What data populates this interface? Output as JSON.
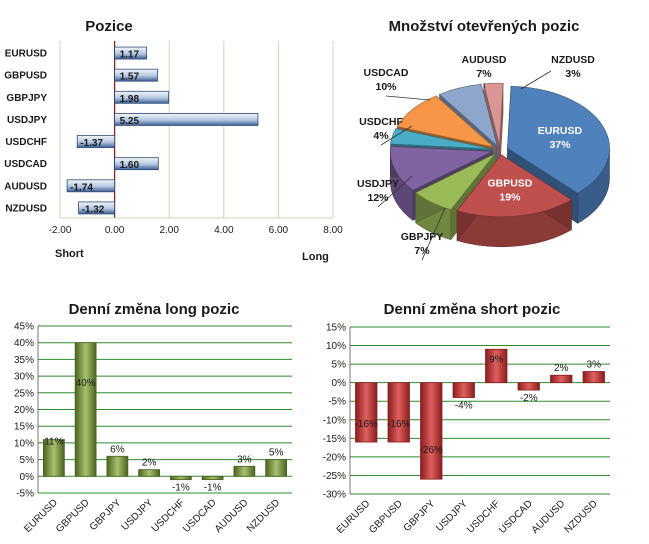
{
  "chart_data": [
    {
      "id": "positions",
      "type": "bar",
      "orientation": "horizontal",
      "title": "Pozice",
      "categories": [
        "EURUSD",
        "GBPUSD",
        "GBPJPY",
        "USDJPY",
        "USDCHF",
        "USDCAD",
        "AUDUSD",
        "NZDUSD"
      ],
      "values": [
        1.17,
        1.57,
        1.98,
        5.25,
        -1.37,
        1.6,
        -1.74,
        -1.32
      ],
      "value_labels": [
        "1.17",
        "1.57",
        "1.98",
        "5.25",
        "-1.37",
        "1.60",
        "-1.74",
        "-1.32"
      ],
      "xlim": [
        -2,
        8
      ],
      "ticks": [
        -2,
        0,
        2,
        4,
        6,
        8
      ],
      "tick_labels": [
        "-2.00",
        "0.00",
        "2.00",
        "4.00",
        "6.00",
        "8.00"
      ],
      "left_label": "Short",
      "right_label": "Long",
      "grid": true,
      "colors": {
        "bar_light": "#f0f4fa",
        "bar_dark": "#3c5f94",
        "grid": "#c8d8b8",
        "zero": "#8b2020"
      }
    },
    {
      "id": "open-positions",
      "type": "pie",
      "title": "Množství otevřených pozic",
      "labels": [
        "EURUSD",
        "GBPUSD",
        "GBPJPY",
        "USDJPY",
        "USDCHF",
        "USDCAD",
        "AUDUSD",
        "NZDUSD"
      ],
      "values": [
        37,
        19,
        7,
        12,
        4,
        10,
        7,
        3
      ],
      "value_labels": [
        "37%",
        "19%",
        "7%",
        "12%",
        "4%",
        "10%",
        "7%",
        "3%"
      ],
      "colors": [
        "#4f81bd",
        "#c0504d",
        "#9bbb59",
        "#8064a2",
        "#4bacc6",
        "#f79646",
        "#8ea6cc",
        "#d99694"
      ]
    },
    {
      "id": "daily-long",
      "type": "bar",
      "title": "Denní změna long pozic",
      "categories": [
        "EURUSD",
        "GBPUSD",
        "GBPJPY",
        "USDJPY",
        "USDCHF",
        "USDCAD",
        "AUDUSD",
        "NZDUSD"
      ],
      "values": [
        11,
        40,
        6,
        2,
        -1,
        -1,
        3,
        5
      ],
      "value_labels": [
        "11%",
        "40%",
        "6%",
        "2%",
        "-1%",
        "-1%",
        "3%",
        "5%"
      ],
      "ylim": [
        -5,
        45
      ],
      "ticks": [
        -5,
        0,
        5,
        10,
        15,
        20,
        25,
        30,
        35,
        40,
        45
      ],
      "tick_labels": [
        "-5%",
        "0%",
        "5%",
        "10%",
        "15%",
        "20%",
        "25%",
        "30%",
        "35%",
        "40%",
        "45%"
      ],
      "grid": true,
      "colors": {
        "bar_light": "#a8c070",
        "bar_dark": "#4a6420",
        "grid": "#2e8b2e"
      }
    },
    {
      "id": "daily-short",
      "type": "bar",
      "title": "Denní změna short pozic",
      "categories": [
        "EURUSD",
        "GBPUSD",
        "GBPJPY",
        "USDJPY",
        "USDCHF",
        "USDCAD",
        "AUDUSD",
        "NZDUSD"
      ],
      "values": [
        -16,
        -16,
        -26,
        -4,
        9,
        -2,
        2,
        3
      ],
      "value_labels": [
        "-16%",
        "-16%",
        "-26%",
        "-4%",
        "9%",
        "-2%",
        "2%",
        "3%"
      ],
      "ylim": [
        -30,
        15
      ],
      "ticks": [
        -30,
        -25,
        -20,
        -15,
        -10,
        -5,
        0,
        5,
        10,
        15
      ],
      "tick_labels": [
        "-30%",
        "-25%",
        "-20%",
        "-15%",
        "-10%",
        "-5%",
        "0%",
        "5%",
        "10%",
        "15%"
      ],
      "grid": true,
      "colors": {
        "bar_light": "#e06060",
        "bar_dark": "#8b1c1c",
        "grid": "#2e8b2e"
      }
    }
  ]
}
